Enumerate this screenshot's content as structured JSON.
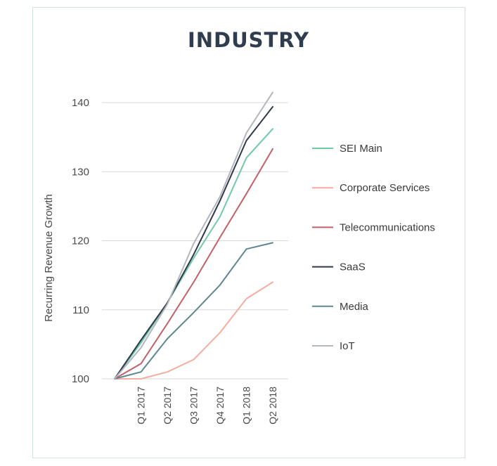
{
  "chart_data": {
    "type": "line",
    "title": "INDUSTRY",
    "xlabel": "",
    "ylabel": "Recurring Revenue Growth",
    "x": [
      "",
      "Q1 2017",
      "Q2 2017",
      "Q3 2017",
      "Q4 2017",
      "Q1 2018",
      "Q2 2018"
    ],
    "yticks": [
      100,
      110,
      120,
      130,
      140
    ],
    "ylim": [
      100,
      140
    ],
    "grid": true,
    "legend_position": "right",
    "series": [
      {
        "name": "SEI Main",
        "color": "#6fcaa6",
        "values": [
          100,
          105.2,
          111.0,
          117.5,
          123.5,
          132.0,
          136.2
        ]
      },
      {
        "name": "Corporate Services",
        "color": "#f4ada0",
        "values": [
          100,
          100.0,
          101.0,
          102.8,
          106.7,
          111.6,
          114.0
        ]
      },
      {
        "name": "Telecommunications",
        "color": "#c3606a",
        "values": [
          100,
          102.2,
          108.0,
          114.0,
          120.5,
          126.8,
          133.3
        ]
      },
      {
        "name": "SaaS",
        "color": "#2e3a4b",
        "values": [
          100,
          105.6,
          111.0,
          118.0,
          125.8,
          134.5,
          139.4
        ]
      },
      {
        "name": "Media",
        "color": "#5e8790",
        "values": [
          100,
          101.0,
          105.8,
          109.6,
          113.6,
          118.8,
          119.7
        ]
      },
      {
        "name": "IoT",
        "color": "#b3b6bd",
        "values": [
          100,
          104.5,
          110.8,
          119.6,
          126.4,
          135.6,
          141.5
        ]
      }
    ]
  }
}
